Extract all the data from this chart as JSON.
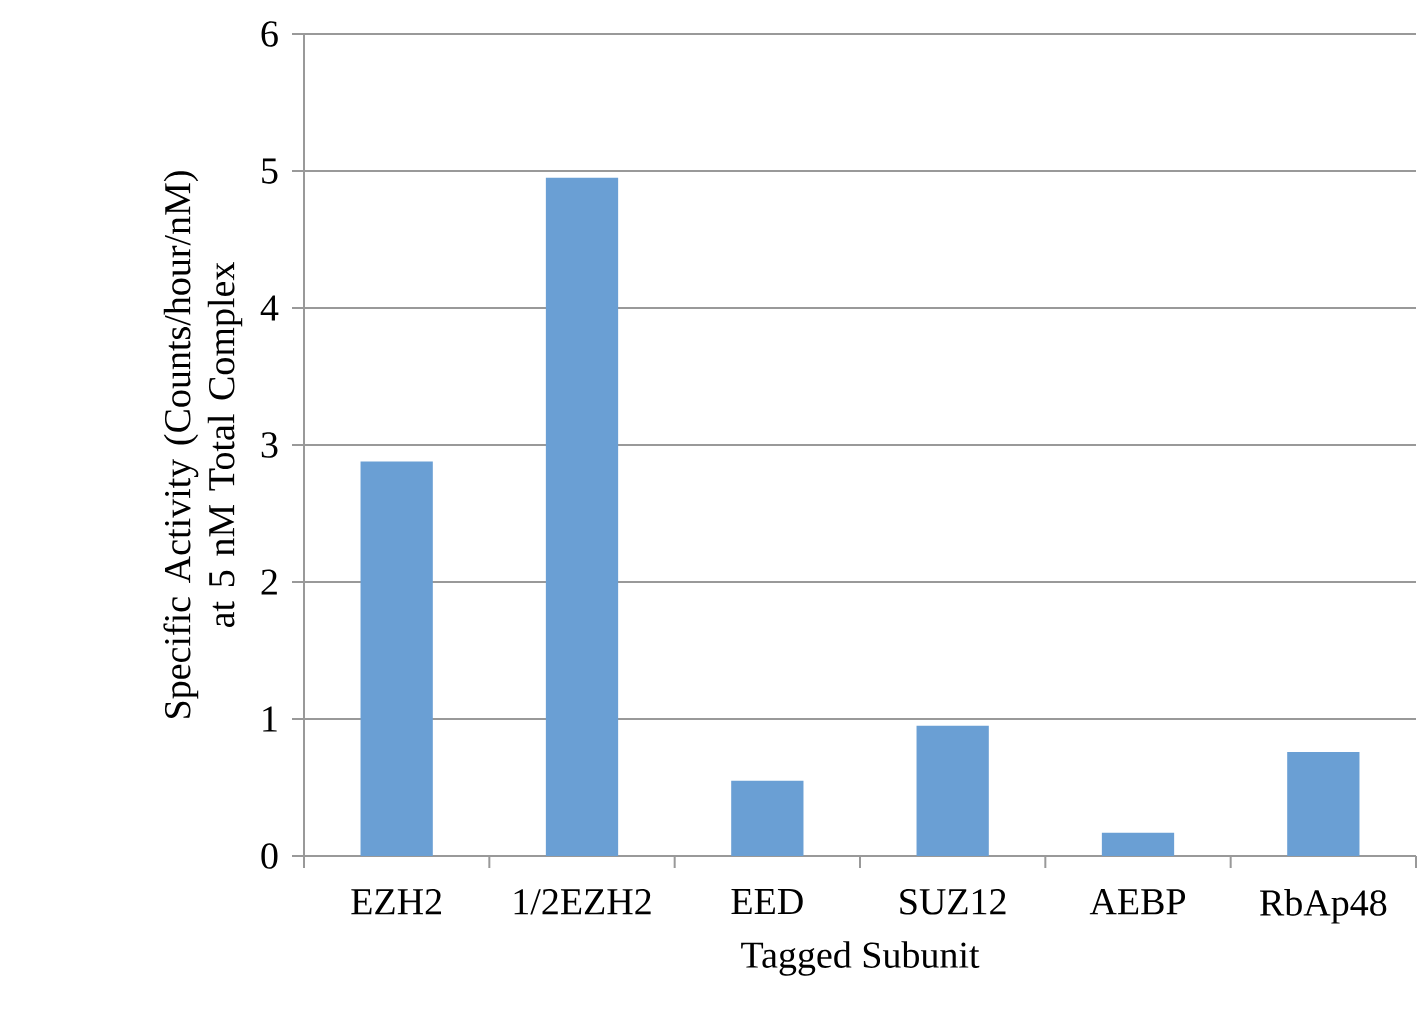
{
  "chart_data": {
    "type": "bar",
    "xlabel": "Tagged Subunit",
    "ylabel": "Specific Activity (Counts/hour/nM) at 5 nM Total Complex",
    "categories": [
      "EZH2",
      "1/2EZH2",
      "EED",
      "SUZ12",
      "AEBP",
      "RbAp48"
    ],
    "values": [
      2.88,
      4.95,
      0.55,
      0.95,
      0.17,
      0.76
    ],
    "color": "#6a9fd4",
    "ylim": [
      0,
      6
    ],
    "yticks": [
      0,
      1,
      2,
      3,
      4,
      5,
      6
    ],
    "grid": "y"
  }
}
